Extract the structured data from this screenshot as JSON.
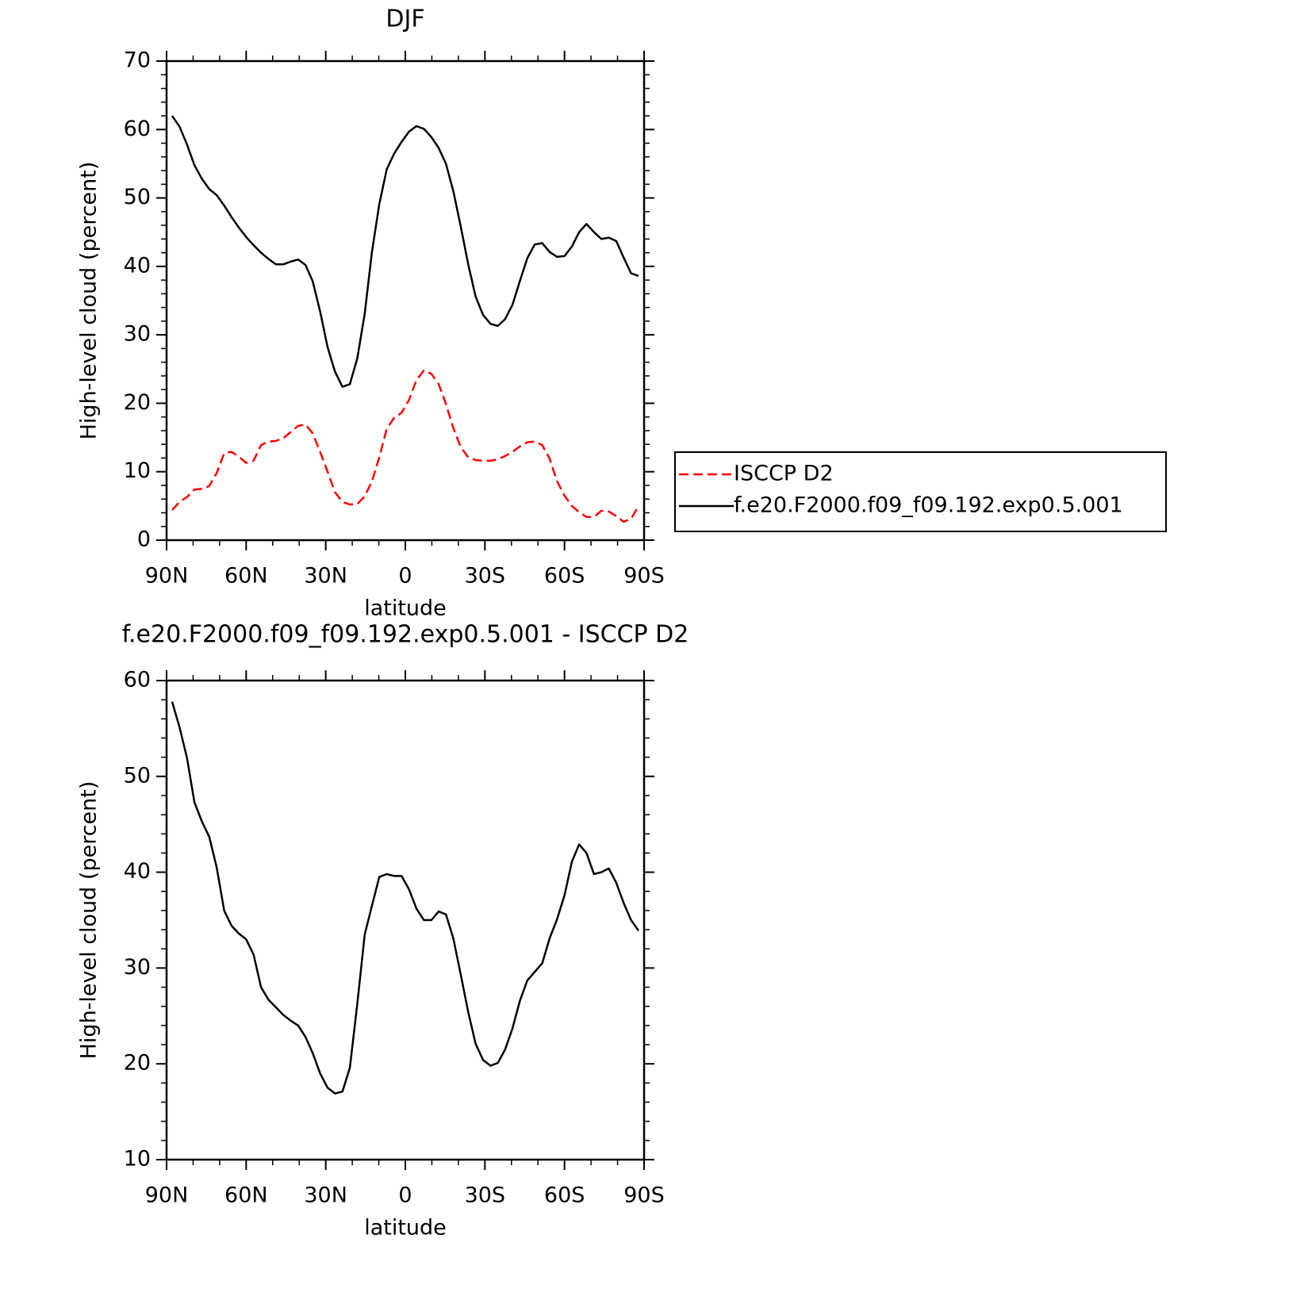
{
  "chart_data": [
    {
      "type": "line",
      "title": "DJF",
      "xlabel": "latitude",
      "ylabel": "High-level cloud (percent)",
      "x": [
        87.9,
        85.1,
        82.3,
        79.5,
        76.7,
        73.9,
        71.1,
        68.3,
        65.5,
        62.8,
        60.0,
        57.2,
        54.4,
        51.6,
        48.8,
        46.0,
        43.2,
        40.4,
        37.6,
        34.9,
        32.1,
        29.3,
        26.5,
        23.7,
        20.9,
        18.1,
        15.3,
        12.6,
        9.8,
        7.0,
        4.2,
        1.4,
        -1.4,
        -4.2,
        -7.0,
        -9.8,
        -12.6,
        -15.3,
        -18.1,
        -20.9,
        -23.7,
        -26.5,
        -29.3,
        -32.1,
        -34.9,
        -37.6,
        -40.4,
        -43.2,
        -46.0,
        -48.8,
        -51.6,
        -54.4,
        -57.2,
        -60.0,
        -62.8,
        -65.5,
        -68.3,
        -71.1,
        -73.9,
        -76.7,
        -79.5,
        -82.3,
        -85.1,
        -87.9
      ],
      "series": [
        {
          "name": "ISCCP D2",
          "color": "#ff0000",
          "line_style": "dashed",
          "values": [
            4.4,
            5.6,
            6.3,
            7.4,
            7.5,
            7.9,
            9.8,
            12.7,
            12.9,
            12.2,
            11.3,
            11.6,
            13.9,
            14.4,
            14.5,
            14.9,
            15.8,
            16.7,
            16.9,
            15.6,
            12.9,
            10.0,
            7.0,
            5.6,
            5.2,
            5.3,
            6.4,
            8.6,
            12.1,
            16.3,
            17.9,
            18.6,
            20.5,
            23.4,
            24.8,
            24.3,
            22.8,
            19.9,
            16.4,
            13.6,
            12.1,
            11.7,
            11.6,
            11.6,
            11.8,
            12.3,
            12.9,
            13.7,
            14.3,
            14.4,
            13.9,
            11.9,
            8.6,
            6.5,
            5.0,
            4.1,
            3.4,
            3.4,
            4.3,
            4.2,
            3.5,
            2.7,
            3.1,
            5.0
          ]
        },
        {
          "name": "f.e20.F2000.f09_f09.192.exp0.5.001",
          "color": "#000000",
          "line_style": "solid",
          "values": [
            62.0,
            60.4,
            57.8,
            54.8,
            52.8,
            51.3,
            50.4,
            48.9,
            47.2,
            45.7,
            44.3,
            43.1,
            42.0,
            41.1,
            40.3,
            40.3,
            40.7,
            41.0,
            40.2,
            37.8,
            33.4,
            28.2,
            24.6,
            22.4,
            22.8,
            26.6,
            33.1,
            42.1,
            49.1,
            54.2,
            56.5,
            58.2,
            59.7,
            60.5,
            60.1,
            58.9,
            57.3,
            55.0,
            51.0,
            45.8,
            40.3,
            35.6,
            32.9,
            31.6,
            31.3,
            32.3,
            34.4,
            37.9,
            41.2,
            43.2,
            43.4,
            42.1,
            41.4,
            41.5,
            42.9,
            45.0,
            46.2,
            45.0,
            44.0,
            44.2,
            43.7,
            41.3,
            39.0,
            38.6
          ]
        }
      ],
      "xlim": [
        90,
        -90
      ],
      "xticks": [
        {
          "value": 90,
          "label": "90N"
        },
        {
          "value": 60,
          "label": "60N"
        },
        {
          "value": 30,
          "label": "30N"
        },
        0,
        {
          "value": -30,
          "label": "30S"
        },
        {
          "value": -60,
          "label": "60S"
        },
        {
          "value": -90,
          "label": "90S"
        }
      ],
      "ylim": [
        0,
        70
      ],
      "yticks": [
        0,
        10,
        20,
        30,
        40,
        50,
        60,
        70
      ],
      "legend": "outside right"
    },
    {
      "type": "line",
      "title": "f.e20.F2000.f09_f09.192.exp0.5.001 - ISCCP D2",
      "xlabel": "latitude",
      "ylabel": "High-level cloud (percent)",
      "x": [
        87.9,
        85.1,
        82.3,
        79.5,
        76.7,
        73.9,
        71.1,
        68.3,
        65.5,
        62.8,
        60.0,
        57.2,
        54.4,
        51.6,
        48.8,
        46.0,
        43.2,
        40.4,
        37.6,
        34.9,
        32.1,
        29.3,
        26.5,
        23.7,
        20.9,
        18.1,
        15.3,
        12.6,
        9.8,
        7.0,
        4.2,
        1.4,
        -1.4,
        -4.2,
        -7.0,
        -9.8,
        -12.6,
        -15.3,
        -18.1,
        -20.9,
        -23.7,
        -26.5,
        -29.3,
        -32.1,
        -34.9,
        -37.6,
        -40.4,
        -43.2,
        -46.0,
        -48.8,
        -51.6,
        -54.4,
        -57.2,
        -60.0,
        -62.8,
        -65.5,
        -68.3,
        -71.1,
        -73.9,
        -76.7,
        -79.5,
        -82.3,
        -85.1,
        -87.9
      ],
      "series": [
        {
          "color": "#000000",
          "line_style": "solid",
          "values": [
            57.8,
            55.1,
            51.9,
            47.3,
            45.3,
            43.7,
            40.5,
            36.0,
            34.4,
            33.6,
            33.0,
            31.4,
            28.0,
            26.7,
            25.9,
            25.1,
            24.5,
            24.0,
            22.8,
            21.1,
            19.0,
            17.5,
            16.9,
            17.1,
            19.6,
            26.3,
            33.5,
            36.5,
            39.5,
            39.8,
            39.6,
            39.6,
            38.2,
            36.2,
            35.0,
            35.0,
            35.9,
            35.6,
            33.1,
            29.3,
            25.4,
            22.1,
            20.4,
            19.8,
            20.1,
            21.5,
            23.7,
            26.6,
            28.7,
            29.6,
            30.5,
            33.1,
            35.1,
            37.6,
            41.1,
            42.9,
            42.0,
            39.8,
            40.0,
            40.4,
            38.9,
            36.8,
            35.0,
            33.9
          ]
        }
      ],
      "xlim": [
        90,
        -90
      ],
      "xticks": [
        {
          "value": 90,
          "label": "90N"
        },
        {
          "value": 60,
          "label": "60N"
        },
        {
          "value": 30,
          "label": "30N"
        },
        0,
        {
          "value": -30,
          "label": "30S"
        },
        {
          "value": -60,
          "label": "60S"
        },
        {
          "value": -90,
          "label": "90S"
        }
      ],
      "ylim": [
        10,
        60
      ],
      "yticks": [
        10,
        20,
        30,
        40,
        50,
        60
      ]
    }
  ]
}
